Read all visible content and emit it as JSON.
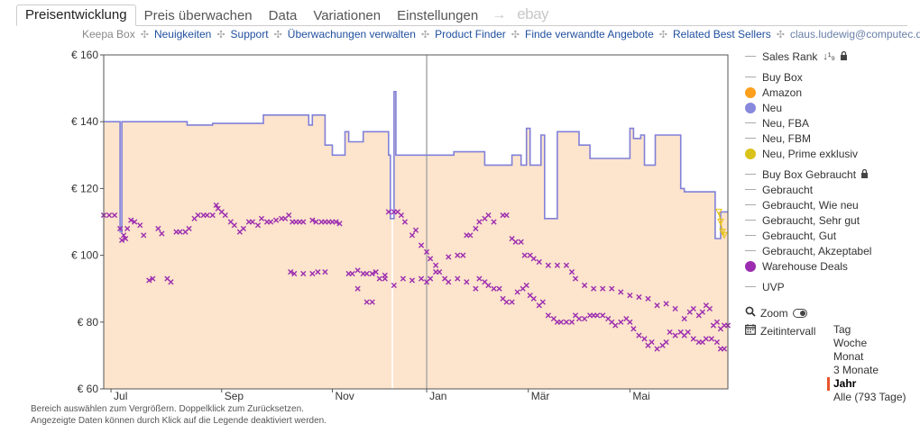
{
  "tabs": [
    {
      "label": "Preisentwicklung",
      "active": true
    },
    {
      "label": "Preis überwachen",
      "active": false
    },
    {
      "label": "Data",
      "active": false
    },
    {
      "label": "Variationen",
      "active": false
    },
    {
      "label": "Einstellungen",
      "active": false
    }
  ],
  "tab_arrow": "→",
  "tab_ebay": "ebay",
  "subnav": {
    "brand": "Keepa Box",
    "links": [
      "Neuigkeiten",
      "Support",
      "Überwachungen verwalten",
      "Product Finder",
      "Finde verwandte Angebote",
      "Related Best Sellers"
    ],
    "email": "claus.ludewig@computec.de"
  },
  "legend": {
    "sales_rank": "Sales Rank",
    "items": [
      {
        "label": "Buy Box",
        "marker": "line",
        "color": "#aaaaaa"
      },
      {
        "label": "Amazon",
        "marker": "dot",
        "color": "#ff9f1c"
      },
      {
        "label": "Neu",
        "marker": "dot",
        "color": "#8888dd"
      },
      {
        "label": "Neu, FBA",
        "marker": "line",
        "color": "#aaaaaa"
      },
      {
        "label": "Neu, FBM",
        "marker": "line",
        "color": "#aaaaaa"
      },
      {
        "label": "Neu, Prime exklusiv",
        "marker": "dot",
        "color": "#d9c21a"
      }
    ],
    "used_buybox": "Buy Box Gebraucht",
    "used_items": [
      {
        "label": "Gebraucht",
        "marker": "line",
        "color": "#aaaaaa"
      },
      {
        "label": "Gebraucht, Wie neu",
        "marker": "line",
        "color": "#aaaaaa"
      },
      {
        "label": "Gebraucht, Sehr gut",
        "marker": "line",
        "color": "#aaaaaa"
      },
      {
        "label": "Gebraucht, Gut",
        "marker": "line",
        "color": "#aaaaaa"
      },
      {
        "label": "Gebraucht, Akzeptabel",
        "marker": "line",
        "color": "#aaaaaa"
      },
      {
        "label": "Warehouse Deals",
        "marker": "dot",
        "color": "#9b2cb0"
      }
    ],
    "uvp": "UVP"
  },
  "tools": {
    "zoom": "Zoom",
    "interval": "Zeitintervall",
    "ranges": [
      "Tag",
      "Woche",
      "Monat",
      "3 Monate",
      "Jahr",
      "Alle (793 Tage)"
    ],
    "active_range": "Jahr"
  },
  "help": {
    "line1": "Bereich auswählen zum Vergrößern. Doppelklick zum Zurücksetzen.",
    "line2": "Angezeigte Daten können durch Klick auf die Legende deaktiviert werden."
  },
  "chart_data": {
    "type": "line",
    "title": "",
    "xlabel": "",
    "ylabel": "",
    "ylim": [
      60,
      160
    ],
    "y_ticks": [
      60,
      80,
      100,
      120,
      140,
      160
    ],
    "y_tick_labels": [
      "€ 60",
      "€ 80",
      "€ 100",
      "€ 120",
      "€ 140",
      "€ 160"
    ],
    "x_range_days": [
      0,
      344
    ],
    "x_ticks": [
      {
        "day": 4,
        "label": "Jul"
      },
      {
        "day": 65,
        "label": "Sep"
      },
      {
        "day": 126,
        "label": "Nov"
      },
      {
        "day": 178,
        "label": "Jan"
      },
      {
        "day": 234,
        "label": "Mär"
      },
      {
        "day": 290,
        "label": "Mai"
      }
    ],
    "year_divider_day": 178,
    "grid": false,
    "colors": {
      "neu": "#8080d8",
      "fill": "#fde4cc",
      "warehouse": "#9b2cb0",
      "prime": "#e8c21a"
    },
    "series": [
      {
        "name": "Neu",
        "points": [
          [
            0,
            140
          ],
          [
            9,
            140
          ],
          [
            9,
            107
          ],
          [
            10,
            107
          ],
          [
            10,
            140
          ],
          [
            46,
            140
          ],
          [
            46,
            139
          ],
          [
            60,
            139
          ],
          [
            60,
            139.5
          ],
          [
            88,
            139.5
          ],
          [
            88,
            142
          ],
          [
            113,
            142
          ],
          [
            113,
            139
          ],
          [
            115,
            139
          ],
          [
            115,
            142
          ],
          [
            122,
            142
          ],
          [
            122,
            133
          ],
          [
            126,
            133
          ],
          [
            126,
            130
          ],
          [
            133,
            130
          ],
          [
            133,
            137
          ],
          [
            135,
            137
          ],
          [
            135,
            134
          ],
          [
            143,
            134
          ],
          [
            143,
            137
          ],
          [
            157,
            137
          ],
          [
            157,
            130
          ],
          [
            158,
            130
          ],
          [
            158,
            111
          ],
          [
            160,
            111
          ],
          [
            160,
            149
          ],
          [
            161,
            149
          ],
          [
            161,
            130
          ],
          [
            193,
            130
          ],
          [
            193,
            131
          ],
          [
            210,
            131
          ],
          [
            210,
            127
          ],
          [
            225,
            127
          ],
          [
            225,
            130
          ],
          [
            230,
            130
          ],
          [
            230,
            127
          ],
          [
            233,
            127
          ],
          [
            233,
            138
          ],
          [
            235,
            138
          ],
          [
            235,
            127
          ],
          [
            241,
            127
          ],
          [
            241,
            136
          ],
          [
            243,
            136
          ],
          [
            243,
            111
          ],
          [
            250,
            111
          ],
          [
            250,
            137
          ],
          [
            262,
            137
          ],
          [
            262,
            133
          ],
          [
            268,
            133
          ],
          [
            268,
            129
          ],
          [
            290,
            129
          ],
          [
            290,
            138
          ],
          [
            292,
            138
          ],
          [
            292,
            135
          ],
          [
            296,
            135
          ],
          [
            296,
            136
          ],
          [
            298,
            136
          ],
          [
            298,
            127
          ],
          [
            304,
            127
          ],
          [
            304,
            136
          ],
          [
            318,
            136
          ],
          [
            318,
            120
          ],
          [
            320,
            120
          ],
          [
            320,
            119
          ],
          [
            337,
            119
          ],
          [
            337,
            105
          ],
          [
            340,
            105
          ],
          [
            340,
            113
          ],
          [
            344,
            113
          ]
        ]
      },
      {
        "name": "Warehouse Deals",
        "points": [
          [
            0,
            112
          ],
          [
            3,
            112
          ],
          [
            6,
            112
          ],
          [
            9,
            108
          ],
          [
            10,
            104.5
          ],
          [
            11,
            106
          ],
          [
            12,
            105
          ],
          [
            13,
            108
          ],
          [
            15,
            110.5
          ],
          [
            17,
            110
          ],
          [
            20,
            109
          ],
          [
            22,
            106
          ],
          [
            25,
            92.5
          ],
          [
            27,
            93
          ],
          [
            30,
            108
          ],
          [
            32,
            106.5
          ],
          [
            35,
            93
          ],
          [
            37,
            92
          ],
          [
            40,
            107
          ],
          [
            42,
            107
          ],
          [
            45,
            107
          ],
          [
            47,
            108
          ],
          [
            50,
            111
          ],
          [
            52,
            112
          ],
          [
            55,
            112
          ],
          [
            57,
            112
          ],
          [
            60,
            112
          ],
          [
            62,
            115
          ],
          [
            63,
            114
          ],
          [
            65,
            113
          ],
          [
            67,
            112
          ],
          [
            70,
            110
          ],
          [
            72,
            109
          ],
          [
            75,
            107
          ],
          [
            77,
            108
          ],
          [
            80,
            110
          ],
          [
            82,
            110
          ],
          [
            85,
            109
          ],
          [
            87,
            111
          ],
          [
            90,
            110
          ],
          [
            92,
            110
          ],
          [
            95,
            110.5
          ],
          [
            98,
            111
          ],
          [
            100,
            111
          ],
          [
            102,
            112
          ],
          [
            104,
            110
          ],
          [
            106,
            110
          ],
          [
            108,
            110
          ],
          [
            110,
            110
          ],
          [
            115,
            110.5
          ],
          [
            117,
            110
          ],
          [
            120,
            110
          ],
          [
            122,
            110
          ],
          [
            124,
            110
          ],
          [
            126,
            110
          ],
          [
            128,
            110
          ],
          [
            130,
            109.5
          ],
          [
            135,
            94.5
          ],
          [
            137,
            94.5
          ],
          [
            140,
            95.5
          ],
          [
            143,
            94.5
          ],
          [
            145,
            94.5
          ],
          [
            148,
            94.5
          ],
          [
            152,
            93
          ],
          [
            155,
            93
          ],
          [
            157,
            113
          ],
          [
            160,
            113
          ],
          [
            162,
            113
          ],
          [
            164,
            112
          ],
          [
            166,
            110
          ],
          [
            170,
            106
          ],
          [
            172,
            107.5
          ],
          [
            175,
            103
          ],
          [
            178,
            101
          ],
          [
            180,
            99
          ],
          [
            183,
            97
          ],
          [
            185,
            95
          ],
          [
            190,
            99.5
          ],
          [
            195,
            100
          ],
          [
            198,
            100
          ],
          [
            200,
            106
          ],
          [
            202,
            106
          ],
          [
            205,
            108
          ],
          [
            207,
            110
          ],
          [
            210,
            111
          ],
          [
            212,
            112
          ],
          [
            215,
            110
          ],
          [
            220,
            112
          ],
          [
            222,
            112
          ],
          [
            225,
            105
          ],
          [
            227,
            104
          ],
          [
            230,
            104
          ],
          [
            232,
            100
          ],
          [
            235,
            100
          ],
          [
            237,
            99
          ],
          [
            240,
            98
          ],
          [
            245,
            97
          ],
          [
            250,
            97
          ],
          [
            255,
            97
          ],
          [
            258,
            95
          ],
          [
            260,
            93
          ],
          [
            265,
            91
          ],
          [
            270,
            90
          ],
          [
            275,
            90
          ],
          [
            280,
            90
          ],
          [
            285,
            89
          ],
          [
            290,
            88
          ],
          [
            295,
            87.5
          ],
          [
            300,
            87
          ],
          [
            305,
            85
          ],
          [
            310,
            85.5
          ],
          [
            315,
            84
          ],
          [
            320,
            81
          ],
          [
            323,
            83
          ],
          [
            325,
            84
          ],
          [
            328,
            82
          ],
          [
            330,
            83
          ],
          [
            332,
            85
          ],
          [
            334,
            84
          ],
          [
            336,
            79
          ],
          [
            338,
            80
          ],
          [
            340,
            78
          ],
          [
            342,
            79
          ],
          [
            344,
            79
          ]
        ]
      },
      {
        "name": "Warehouse Deals (low offers)",
        "points": [
          [
            103,
            95
          ],
          [
            105,
            94.5
          ],
          [
            110,
            94.5
          ],
          [
            115,
            94.5
          ],
          [
            118,
            95
          ],
          [
            122,
            95
          ],
          [
            140,
            90
          ],
          [
            145,
            86
          ],
          [
            148,
            86
          ],
          [
            150,
            95
          ],
          [
            155,
            94
          ],
          [
            160,
            91
          ],
          [
            165,
            93
          ],
          [
            170,
            92.5
          ],
          [
            175,
            93
          ],
          [
            178,
            92
          ],
          [
            180,
            93
          ],
          [
            183,
            95
          ],
          [
            188,
            93
          ],
          [
            190,
            92
          ],
          [
            195,
            93
          ],
          [
            200,
            92
          ],
          [
            205,
            90
          ],
          [
            207,
            93
          ],
          [
            210,
            92
          ],
          [
            212,
            91
          ],
          [
            215,
            90
          ],
          [
            218,
            90
          ],
          [
            220,
            87
          ],
          [
            222,
            86
          ],
          [
            225,
            86
          ],
          [
            228,
            89
          ],
          [
            231,
            90
          ],
          [
            233,
            91
          ],
          [
            235,
            88
          ],
          [
            237,
            87
          ],
          [
            240,
            85
          ],
          [
            242,
            86
          ],
          [
            245,
            82
          ],
          [
            248,
            81
          ],
          [
            250,
            80
          ],
          [
            252,
            80
          ],
          [
            255,
            80
          ],
          [
            258,
            80
          ],
          [
            260,
            82
          ],
          [
            262,
            81
          ],
          [
            265,
            81
          ],
          [
            268,
            82
          ],
          [
            270,
            82
          ],
          [
            272,
            82
          ],
          [
            275,
            82
          ],
          [
            278,
            81
          ],
          [
            280,
            80
          ],
          [
            282,
            79
          ],
          [
            285,
            80
          ],
          [
            288,
            81
          ],
          [
            290,
            80
          ],
          [
            292,
            78
          ],
          [
            295,
            76
          ],
          [
            298,
            75
          ],
          [
            300,
            73
          ],
          [
            302,
            74
          ],
          [
            305,
            72
          ],
          [
            308,
            73
          ],
          [
            310,
            74
          ],
          [
            312,
            77
          ],
          [
            315,
            76
          ],
          [
            318,
            77
          ],
          [
            320,
            76
          ],
          [
            322,
            77
          ],
          [
            325,
            75
          ],
          [
            328,
            74
          ],
          [
            330,
            74
          ],
          [
            332,
            75
          ],
          [
            335,
            75
          ],
          [
            338,
            74
          ],
          [
            340,
            72
          ],
          [
            342,
            72
          ]
        ]
      },
      {
        "name": "Neu, Prime exklusiv",
        "points": [
          [
            339,
            113
          ],
          [
            340,
            110
          ],
          [
            341,
            107
          ],
          [
            342,
            106
          ]
        ]
      }
    ]
  }
}
